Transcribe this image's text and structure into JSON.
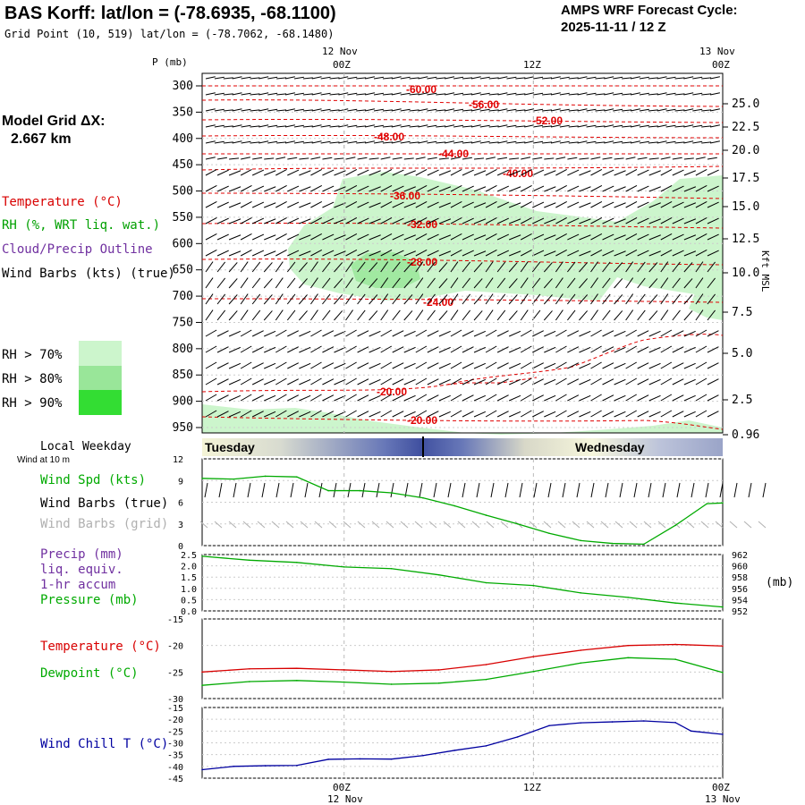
{
  "header": {
    "title": "BAS Korff:  lat/lon = (-78.6935, -68.1100)",
    "grid_point": "Grid Point (10, 519) lat/lon = (-78.7062, -68.1480)",
    "cycle_line1": "AMPS WRF Forecast Cycle:",
    "cycle_line2": "2025-11-11 / 12  Z"
  },
  "left_panel": {
    "model_grid_label": "Model Grid ΔX:",
    "model_grid_value": "2.667 km",
    "temperature_label": "Temperature (°C)",
    "rh_label": "RH (%, WRT liq. wat.)",
    "cloud_label": "Cloud/Precip Outline",
    "wind_barbs_label": "Wind Barbs (kts) (true)",
    "rh70": "RH > 70%",
    "rh80": "RH > 80%",
    "rh90": "RH > 90%",
    "local_weekday": "Local Weekday",
    "wind_at_10m": "Wind at 10 m",
    "wind_spd": "Wind Spd (kts)",
    "wind_barbs_true": "Wind Barbs (true)",
    "wind_barbs_grid": "Wind Barbs (grid)",
    "precip_l1": "Precip (mm)",
    "precip_l2": "liq. equiv.",
    "precip_l3": "1-hr accum",
    "pressure_label": "Pressure (mb)",
    "temp_label2": "Temperature (°C)",
    "dewpoint_label": "Dewpoint (°C)",
    "windchill_label": "Wind Chill T (°C)"
  },
  "axis": {
    "p_label": "P (mb)",
    "top_date1": "12 Nov",
    "top_00z": "00Z",
    "top_12z": "12Z",
    "top_date2": "13 Nov",
    "top_00z2": "00Z",
    "kft_label": "Kft MSL",
    "mb_label": "(mb)",
    "bot_00z": "00Z",
    "bot_date1": "12 Nov",
    "bot_12z": "12Z",
    "bot_00z2": "00Z",
    "bot_date2": "13 Nov"
  },
  "colors": {
    "temp": "#d80000",
    "rh": "#00a000",
    "cloud": "#7030a0",
    "wind": "#00aa00",
    "pressure": "#00aa00",
    "dewpoint": "#00aa00",
    "windchill": "#0000a0",
    "rh70": "#ccf5cc",
    "rh80": "#99e699",
    "rh90": "#33dd33"
  },
  "weekday": {
    "day1": "Tuesday",
    "day2": "Wednesday"
  },
  "chart_data": [
    {
      "type": "heatmap",
      "title": "Time-height cross section",
      "ylabel": "P (mb)",
      "pressure_ticks": [
        300,
        350,
        400,
        450,
        500,
        550,
        600,
        650,
        700,
        750,
        800,
        850,
        900,
        950
      ],
      "kft_ticks": [
        "25.0",
        "22.5",
        "20.0",
        "17.5",
        "15.0",
        "12.5",
        "10.0",
        "7.5",
        "5.0",
        "2.5",
        "0.96"
      ],
      "temperature_contour_labels": [
        "-60.00",
        "-56.00",
        "-52.00",
        "-48.00",
        "-44.00",
        "-40.00",
        "-36.00",
        "-32.00",
        "-28.00",
        "-24.00",
        "-20.00",
        "-20.00"
      ],
      "x_ticks": [
        "00Z 12 Nov",
        "12Z",
        "00Z 13 Nov"
      ]
    },
    {
      "type": "line",
      "title": "Wind Spd (kts)",
      "x_hours": [
        0,
        2,
        4,
        6,
        8,
        10,
        12,
        14,
        16,
        18,
        20,
        22,
        24,
        26,
        28,
        30,
        32,
        33
      ],
      "values": [
        9.3,
        9.2,
        9.6,
        9.5,
        7.6,
        7.6,
        7.3,
        6.6,
        5.5,
        4.2,
        3.0,
        1.7,
        0.7,
        0.3,
        0.2,
        2.8,
        5.8,
        5.9
      ],
      "ylim": [
        0,
        12
      ],
      "y_ticks": [
        "0",
        "3",
        "6",
        "9",
        "12"
      ]
    },
    {
      "type": "line",
      "title": "Pressure (mb)",
      "x_hours": [
        0,
        3,
        6,
        9,
        12,
        15,
        18,
        21,
        24,
        27,
        30,
        33
      ],
      "values": [
        961.7,
        961.0,
        960.6,
        959.8,
        959.5,
        958.4,
        957.0,
        956.5,
        955.2,
        954.4,
        953.4,
        952.7
      ],
      "ylim": [
        952,
        962
      ],
      "left_ticks": [
        "0.0",
        "0.5",
        "1.0",
        "1.5",
        "2.0",
        "2.5"
      ],
      "right_ticks": [
        "952",
        "954",
        "956",
        "958",
        "960",
        "962"
      ]
    },
    {
      "type": "line",
      "title": "Temperature / Dewpoint (°C)",
      "x_hours": [
        0,
        3,
        6,
        9,
        12,
        15,
        18,
        21,
        24,
        27,
        30,
        33
      ],
      "series": [
        {
          "name": "Temperature",
          "values": [
            -25.0,
            -24.4,
            -24.3,
            -24.6,
            -24.9,
            -24.6,
            -23.6,
            -22.1,
            -20.9,
            -20.0,
            -19.8,
            -20.1
          ]
        },
        {
          "name": "Dewpoint",
          "values": [
            -27.5,
            -26.8,
            -26.6,
            -26.9,
            -27.3,
            -27.1,
            -26.4,
            -24.9,
            -23.3,
            -22.3,
            -22.6,
            -25.1
          ]
        }
      ],
      "ylim": [
        -30,
        -15
      ],
      "y_ticks": [
        "-15",
        "-20",
        "-25",
        "-30"
      ]
    },
    {
      "type": "line",
      "title": "Wind Chill T (°C)",
      "x_hours": [
        0,
        2,
        4,
        6,
        8,
        10,
        12,
        14,
        16,
        18,
        20,
        22,
        24,
        26,
        28,
        30,
        31,
        33
      ],
      "values": [
        -41.4,
        -40.0,
        -39.7,
        -39.6,
        -37.0,
        -36.8,
        -36.9,
        -35.4,
        -33.2,
        -31.3,
        -27.5,
        -22.7,
        -21.5,
        -21.1,
        -20.7,
        -21.4,
        -25.0,
        -26.4
      ],
      "ylim": [
        -45,
        -15
      ],
      "y_ticks": [
        "-15",
        "-20",
        "-25",
        "-30",
        "-35",
        "-40",
        "-45"
      ]
    }
  ]
}
